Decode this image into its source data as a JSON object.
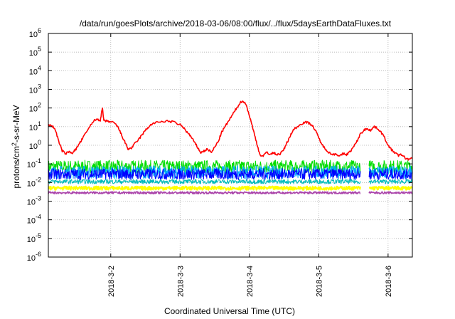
{
  "chart_data": {
    "type": "line",
    "title": "/data/run/goesPlots/archive/2018-03-06/08:00/flux/../flux/5daysEarthDataFluxes.txt",
    "xlabel": "Coordinated Universal Time (UTC)",
    "ylabel_parts": {
      "before": "protons/cm",
      "sup": "2",
      "after": "-s-sr-MeV"
    },
    "y_scale": "log",
    "ylim_exp": [
      -6,
      6
    ],
    "xlim_days": [
      1.1,
      6.35
    ],
    "x_ticks": [
      {
        "label": "2018-3-2",
        "day": 2
      },
      {
        "label": "2018-3-3",
        "day": 3
      },
      {
        "label": "2018-3-4",
        "day": 4
      },
      {
        "label": "2018-3-5",
        "day": 5
      },
      {
        "label": "2018-3-6",
        "day": 6
      }
    ],
    "y_ticks": [
      {
        "base": "10",
        "exp": "6",
        "value": 6
      },
      {
        "base": "10",
        "exp": "5",
        "value": 5
      },
      {
        "base": "10",
        "exp": "4",
        "value": 4
      },
      {
        "base": "10",
        "exp": "3",
        "value": 3
      },
      {
        "base": "10",
        "exp": "2",
        "value": 2
      },
      {
        "base": "10",
        "exp": "1",
        "value": 1
      },
      {
        "base": "10",
        "exp": "0",
        "value": 0
      },
      {
        "base": "10",
        "exp": "-1",
        "value": -1
      },
      {
        "base": "10",
        "exp": "-2",
        "value": -2
      },
      {
        "base": "10",
        "exp": "-3",
        "value": -3
      },
      {
        "base": "10",
        "exp": "-4",
        "value": -4
      },
      {
        "base": "10",
        "exp": "-5",
        "value": -5
      },
      {
        "base": "10",
        "exp": "-6",
        "value": -6
      }
    ],
    "grid": true,
    "series": [
      {
        "color": "#ff0000",
        "width": 1.6,
        "log10_x_day": [
          1.1,
          1.15,
          1.2,
          1.25,
          1.3,
          1.35,
          1.4,
          1.45,
          1.5,
          1.55,
          1.6,
          1.7,
          1.75,
          1.8,
          1.85,
          1.88,
          1.9,
          1.95,
          2.0,
          2.05,
          2.1,
          2.15,
          2.2,
          2.25,
          2.3,
          2.35,
          2.4,
          2.45,
          2.5,
          2.55,
          2.6,
          2.7,
          2.8,
          2.9,
          3.0,
          3.05,
          3.1,
          3.15,
          3.2,
          3.25,
          3.3,
          3.35,
          3.4,
          3.45,
          3.5,
          3.55,
          3.6,
          3.65,
          3.7,
          3.75,
          3.8,
          3.85,
          3.9,
          3.95,
          4.0,
          4.05,
          4.1,
          4.15,
          4.2,
          4.25,
          4.3,
          4.35,
          4.4,
          4.45,
          4.5,
          4.55,
          4.6,
          4.65,
          4.7,
          4.75,
          4.8,
          4.85,
          4.9,
          4.95,
          5.0,
          5.05,
          5.1,
          5.15,
          5.2,
          5.25,
          5.3,
          5.35,
          5.4,
          5.45,
          5.5,
          5.55,
          5.6,
          5.65,
          5.7,
          5.75,
          5.8,
          5.85,
          5.9,
          5.95,
          6.0,
          6.05,
          6.1,
          6.15,
          6.2,
          6.25,
          6.3,
          6.35
        ],
        "log10_y": [
          1.1,
          1.05,
          0.85,
          0.2,
          -0.3,
          -0.45,
          -0.35,
          -0.4,
          -0.2,
          0.1,
          0.4,
          1.0,
          1.3,
          1.4,
          1.35,
          2.0,
          1.3,
          1.3,
          1.25,
          1.2,
          1.0,
          0.6,
          0.2,
          -0.2,
          -0.15,
          0.1,
          0.3,
          0.55,
          0.8,
          1.0,
          1.15,
          1.25,
          1.3,
          1.25,
          1.1,
          0.95,
          0.7,
          0.5,
          0.2,
          -0.1,
          -0.4,
          -0.3,
          -0.2,
          -0.4,
          -0.1,
          0.2,
          0.7,
          1.0,
          1.3,
          1.6,
          1.9,
          2.2,
          2.4,
          2.2,
          1.6,
          0.9,
          0.2,
          -0.5,
          -0.6,
          -0.35,
          -0.5,
          -0.4,
          -0.5,
          -0.45,
          -0.2,
          0.2,
          0.6,
          0.9,
          1.0,
          1.15,
          1.25,
          1.2,
          1.1,
          0.8,
          0.4,
          0.0,
          -0.2,
          -0.4,
          -0.5,
          -0.45,
          -0.6,
          -0.45,
          -0.5,
          -0.35,
          -0.1,
          0.2,
          0.6,
          0.8,
          0.9,
          0.8,
          1.0,
          0.9,
          0.7,
          0.4,
          0.0,
          -0.25,
          -0.4,
          -0.55,
          -0.5,
          -0.7,
          -0.75,
          -0.7
        ]
      }
    ],
    "bands": [
      {
        "color": "#00dd00",
        "center": -1.15,
        "amp": 0.35,
        "width": 1.0,
        "gap": [
          5.6,
          5.72
        ]
      },
      {
        "color": "#00aaff",
        "center": -1.45,
        "amp": 0.35,
        "width": 1.0,
        "gap": [
          5.6,
          5.72
        ]
      },
      {
        "color": "#0000ff",
        "center": -1.55,
        "amp": 0.3,
        "width": 1.0,
        "gap": [
          5.6,
          5.72
        ]
      },
      {
        "color": "#00bbbb",
        "center": -1.95,
        "amp": 0.12,
        "width": 1.0,
        "gap": [
          5.6,
          5.72
        ]
      },
      {
        "color": "#ffff00",
        "center": -2.3,
        "amp": 0.1,
        "width": 2.0,
        "gap": [
          5.6,
          5.72
        ]
      },
      {
        "color": "#aa44aa",
        "center": -2.55,
        "amp": 0.06,
        "width": 1.5,
        "gap": [
          5.6,
          5.72
        ]
      }
    ]
  }
}
